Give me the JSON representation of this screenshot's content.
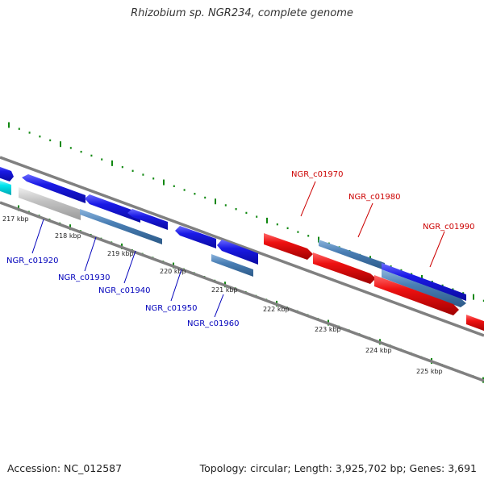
{
  "title": "Rhizobium sp. NGR234, complete genome",
  "accession": "Accession: NC_012587",
  "summary": "Topology: circular; Length: 3,925,702 bp; Genes: 3,691",
  "colors": {
    "background": "#ffffff",
    "backbone": "#808080",
    "tick": "#118811",
    "forward_gene": "#ee1111",
    "reverse_gene": "#1a1ae6",
    "steel_gene": "#4a7fb5",
    "cyan_gene": "#00e5ee",
    "grey_gene": "#c4c4c4",
    "label_blue": "#0000bb",
    "label_red": "#cc0000"
  },
  "scale": {
    "tick_labels": [
      "217 kbp",
      "218 kbp",
      "219 kbp",
      "220 kbp",
      "221 kbp",
      "222 kbp",
      "223 kbp",
      "224 kbp",
      "225 kbp"
    ]
  },
  "gene_labels_blue": [
    "NGR_c01920",
    "NGR_c01930",
    "NGR_c01940",
    "NGR_c01950",
    "NGR_c01960"
  ],
  "gene_labels_red": [
    "NGR_c01970",
    "NGR_c01980",
    "NGR_c01990"
  ]
}
